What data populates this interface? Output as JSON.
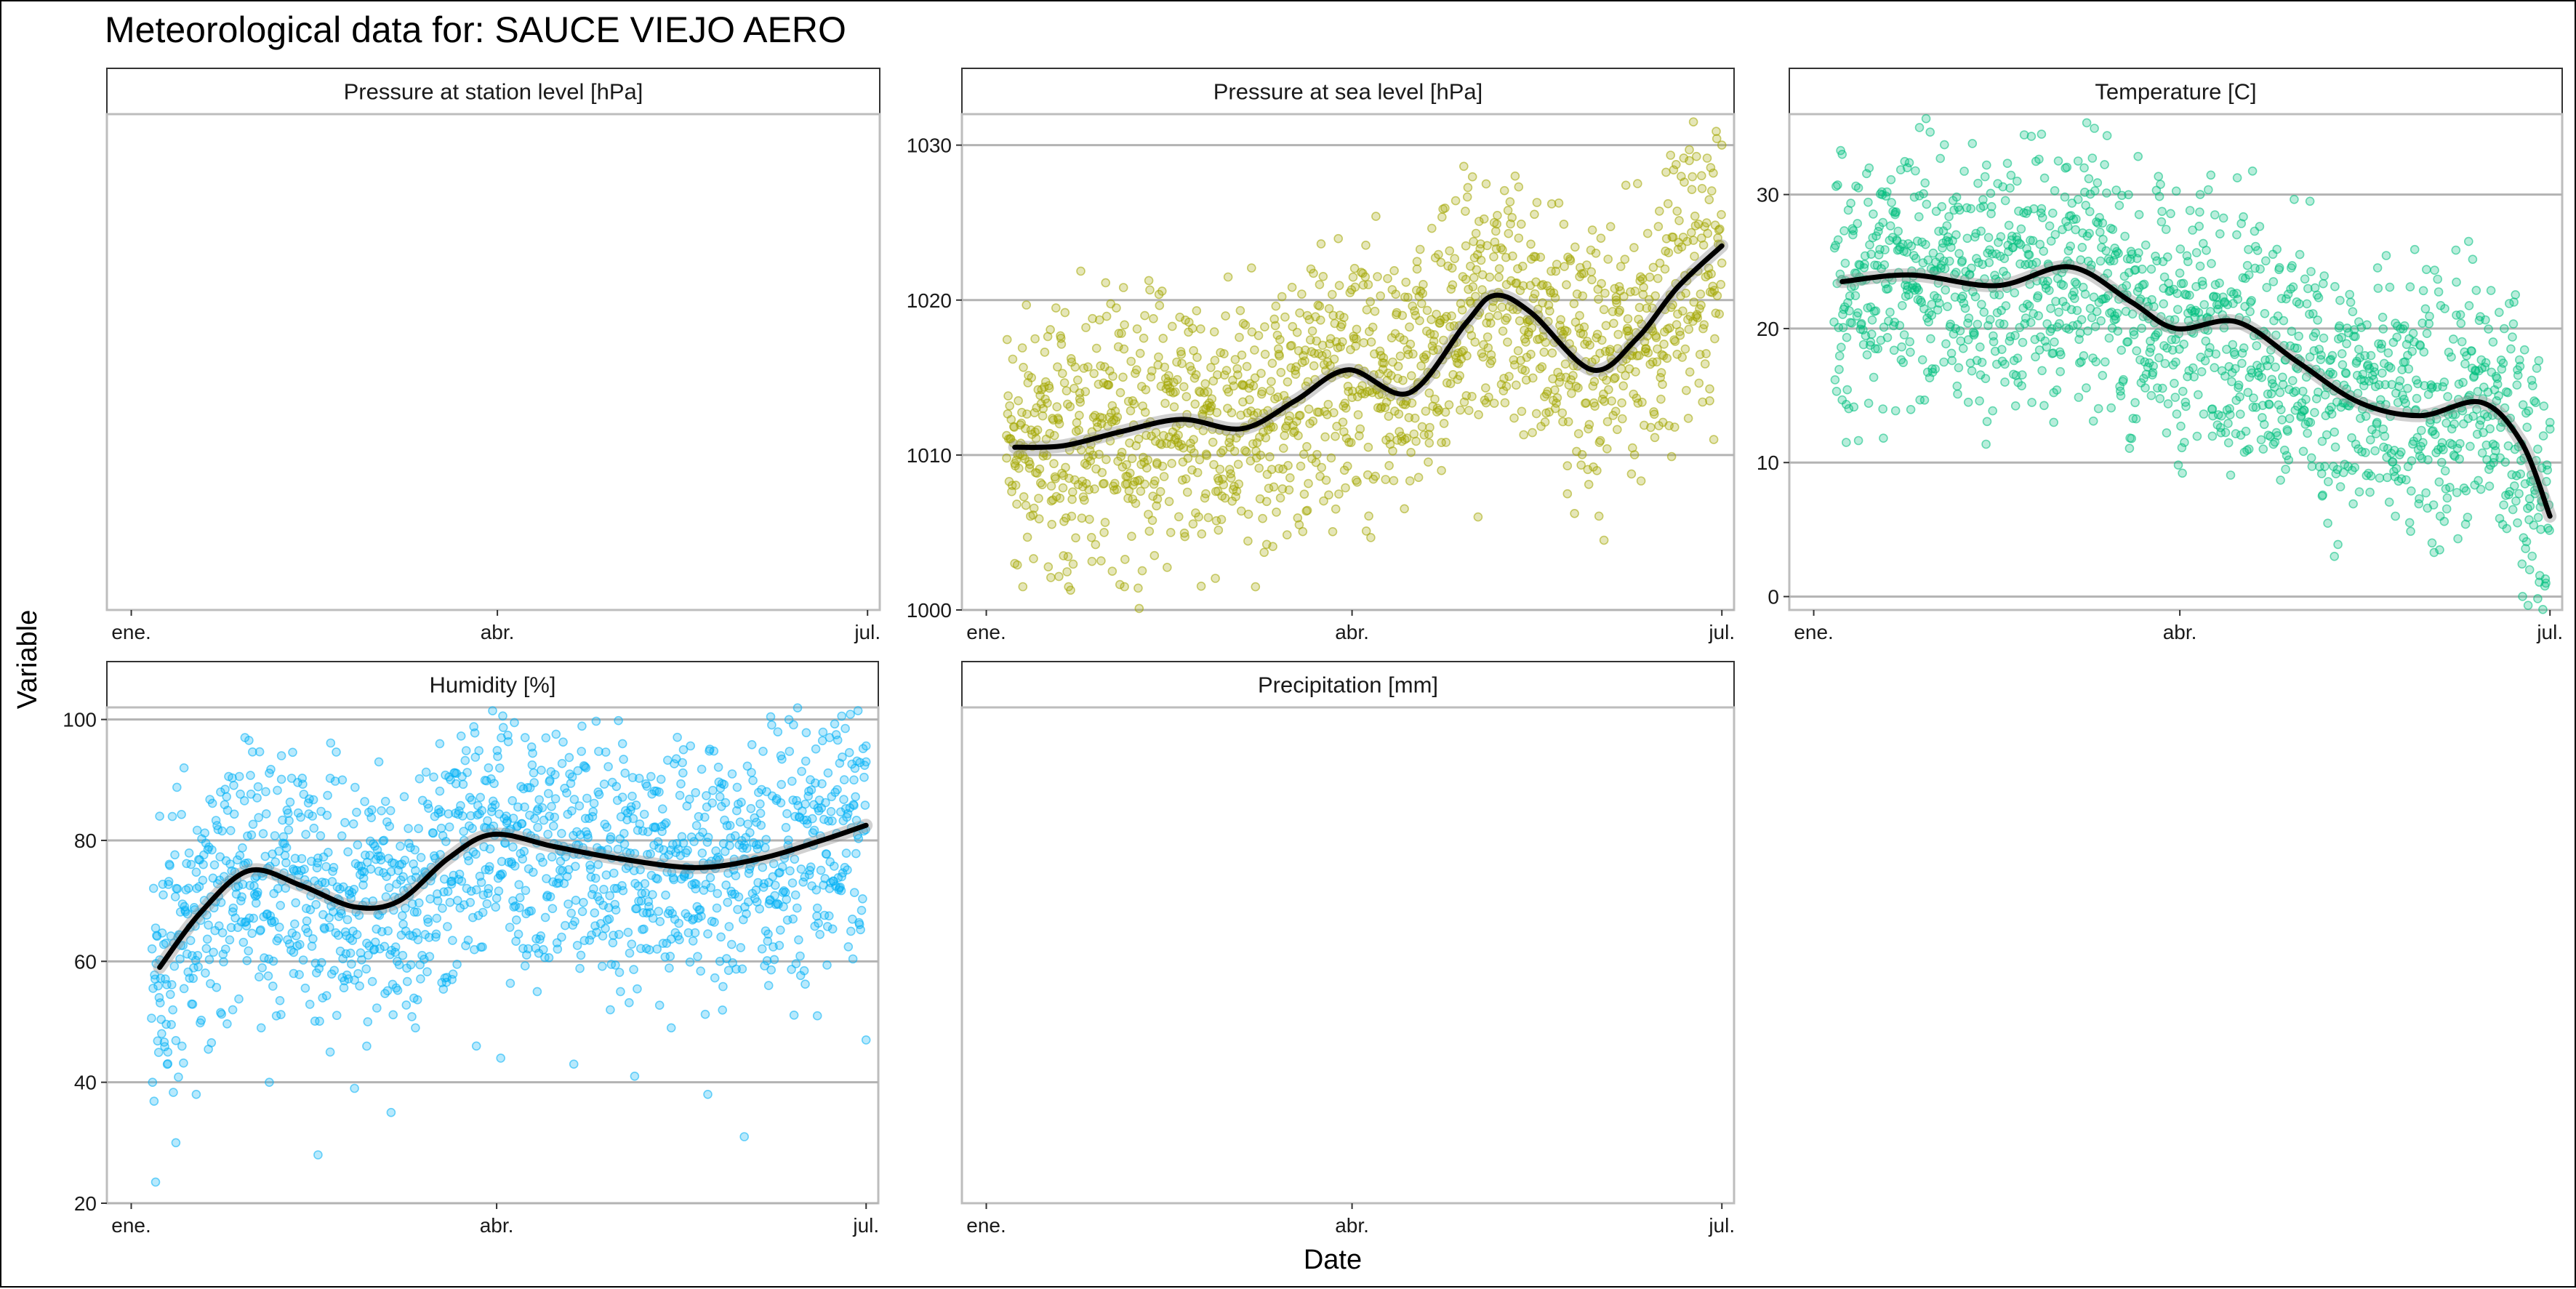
{
  "title": "Meteorological data for: SAUCE VIEJO AERO",
  "xlabel": "Date",
  "ylabel": "Variable",
  "x_tick_labels": [
    "ene.",
    "abr.",
    "jul."
  ],
  "chart_data": [
    {
      "type": "scatter",
      "facet": "Pressure at station level [hPa]",
      "color": "#c0c0c0",
      "x_ticks": [
        "ene.",
        "abr.",
        "jul."
      ],
      "xlim": [
        "2020-12-26",
        "2021-07-04"
      ],
      "points": [],
      "smooth": []
    },
    {
      "type": "scatter",
      "facet": "Pressure at sea level [hPa]",
      "color": "#a3a500",
      "x_ticks": [
        "ene.",
        "abr.",
        "jul."
      ],
      "y_ticks": [
        1000,
        1010,
        1020,
        1030
      ],
      "ylim": [
        1000,
        1032
      ],
      "xlim": [
        "2020-12-26",
        "2021-07-04"
      ],
      "smooth": [
        {
          "date": "2021-01-08",
          "value": 1010.5
        },
        {
          "date": "2021-01-20",
          "value": 1010.6
        },
        {
          "date": "2021-02-03",
          "value": 1011.5
        },
        {
          "date": "2021-02-18",
          "value": 1012.3
        },
        {
          "date": "2021-03-05",
          "value": 1011.7
        },
        {
          "date": "2021-03-18",
          "value": 1013.5
        },
        {
          "date": "2021-03-31",
          "value": 1015.5
        },
        {
          "date": "2021-04-15",
          "value": 1014.0
        },
        {
          "date": "2021-04-29",
          "value": 1018.5
        },
        {
          "date": "2021-05-06",
          "value": 1020.3
        },
        {
          "date": "2021-05-15",
          "value": 1019.2
        },
        {
          "date": "2021-05-30",
          "value": 1015.5
        },
        {
          "date": "2021-06-10",
          "value": 1017.5
        },
        {
          "date": "2021-06-20",
          "value": 1020.8
        },
        {
          "date": "2021-07-01",
          "value": 1023.5
        }
      ],
      "points": [
        {
          "date": "2021-01-06",
          "value": 1009.8
        },
        {
          "date": "2021-01-08",
          "value": 1003.0
        },
        {
          "date": "2021-01-10",
          "value": 1001.5
        },
        {
          "date": "2021-01-13",
          "value": 1017.5
        },
        {
          "date": "2021-01-15",
          "value": 1013.0
        },
        {
          "date": "2021-01-17",
          "value": 1008.0
        },
        {
          "date": "2021-01-20",
          "value": 1003.5
        },
        {
          "date": "2021-01-22",
          "value": 1016.0
        },
        {
          "date": "2021-01-24",
          "value": 1014.0
        },
        {
          "date": "2021-01-27",
          "value": 1011.5
        },
        {
          "date": "2021-01-30",
          "value": 1005.0
        },
        {
          "date": "2021-02-01",
          "value": 1002.5
        },
        {
          "date": "2021-02-04",
          "value": 1001.5
        },
        {
          "date": "2021-02-06",
          "value": 1013.5
        },
        {
          "date": "2021-02-09",
          "value": 1019.0
        },
        {
          "date": "2021-02-12",
          "value": 1009.5
        },
        {
          "date": "2021-02-15",
          "value": 1007.0
        },
        {
          "date": "2021-02-18",
          "value": 1016.5
        },
        {
          "date": "2021-02-21",
          "value": 1011.0
        },
        {
          "date": "2021-02-24",
          "value": 1013.0
        },
        {
          "date": "2021-02-27",
          "value": 1008.5
        },
        {
          "date": "2021-03-02",
          "value": 1010.5
        },
        {
          "date": "2021-03-05",
          "value": 1014.5
        },
        {
          "date": "2021-03-08",
          "value": 1012.0
        },
        {
          "date": "2021-03-11",
          "value": 1007.0
        },
        {
          "date": "2021-03-14",
          "value": 1016.5
        },
        {
          "date": "2021-03-16",
          "value": 1013.5
        },
        {
          "date": "2021-03-19",
          "value": 1005.5
        },
        {
          "date": "2021-03-21",
          "value": 1019.0
        },
        {
          "date": "2021-03-24",
          "value": 1021.0
        },
        {
          "date": "2021-03-27",
          "value": 1015.0
        },
        {
          "date": "2021-03-30",
          "value": 1011.5
        },
        {
          "date": "2021-04-02",
          "value": 1017.5
        },
        {
          "date": "2021-04-05",
          "value": 1010.5
        },
        {
          "date": "2021-04-08",
          "value": 1013.0
        },
        {
          "date": "2021-04-11",
          "value": 1016.0
        },
        {
          "date": "2021-04-14",
          "value": 1011.0
        },
        {
          "date": "2021-04-17",
          "value": 1022.0
        },
        {
          "date": "2021-04-20",
          "value": 1014.0
        },
        {
          "date": "2021-04-23",
          "value": 1009.0
        },
        {
          "date": "2021-04-26",
          "value": 1017.5
        },
        {
          "date": "2021-04-29",
          "value": 1023.5
        },
        {
          "date": "2021-05-02",
          "value": 1006.0
        },
        {
          "date": "2021-05-04",
          "value": 1027.5
        },
        {
          "date": "2021-05-06",
          "value": 1025.0
        },
        {
          "date": "2021-05-09",
          "value": 1021.0
        },
        {
          "date": "2021-05-12",
          "value": 1024.0
        },
        {
          "date": "2021-05-15",
          "value": 1016.5
        },
        {
          "date": "2021-05-18",
          "value": 1021.0
        },
        {
          "date": "2021-05-21",
          "value": 1013.0
        },
        {
          "date": "2021-05-24",
          "value": 1007.5
        },
        {
          "date": "2021-05-27",
          "value": 1019.0
        },
        {
          "date": "2021-05-30",
          "value": 1016.0
        },
        {
          "date": "2021-06-02",
          "value": 1004.5
        },
        {
          "date": "2021-06-05",
          "value": 1020.0
        },
        {
          "date": "2021-06-08",
          "value": 1017.0
        },
        {
          "date": "2021-06-11",
          "value": 1021.5
        },
        {
          "date": "2021-06-14",
          "value": 1018.0
        },
        {
          "date": "2021-06-17",
          "value": 1022.0
        },
        {
          "date": "2021-06-20",
          "value": 1016.5
        },
        {
          "date": "2021-06-23",
          "value": 1029.0
        },
        {
          "date": "2021-06-24",
          "value": 1031.5
        },
        {
          "date": "2021-06-26",
          "value": 1024.0
        },
        {
          "date": "2021-06-28",
          "value": 1013.5
        },
        {
          "date": "2021-06-29",
          "value": 1011.0
        },
        {
          "date": "2021-07-01",
          "value": 1030.0
        }
      ]
    },
    {
      "type": "scatter",
      "facet": "Temperature [C]",
      "color": "#00bf7d",
      "x_ticks": [
        "ene.",
        "abr.",
        "jul."
      ],
      "y_ticks": [
        0,
        10,
        20,
        30
      ],
      "ylim": [
        -1,
        36
      ],
      "xlim": [
        "2020-12-26",
        "2021-07-04"
      ],
      "smooth": [
        {
          "date": "2021-01-08",
          "value": 23.5
        },
        {
          "date": "2021-01-25",
          "value": 24.0
        },
        {
          "date": "2021-02-15",
          "value": 23.2
        },
        {
          "date": "2021-03-05",
          "value": 24.6
        },
        {
          "date": "2021-03-20",
          "value": 22.0
        },
        {
          "date": "2021-03-31",
          "value": 20.0
        },
        {
          "date": "2021-04-15",
          "value": 20.5
        },
        {
          "date": "2021-04-30",
          "value": 17.5
        },
        {
          "date": "2021-05-15",
          "value": 14.5
        },
        {
          "date": "2021-05-30",
          "value": 13.5
        },
        {
          "date": "2021-06-14",
          "value": 14.5
        },
        {
          "date": "2021-06-24",
          "value": 11.5
        },
        {
          "date": "2021-07-01",
          "value": 6.0
        }
      ],
      "points": [
        {
          "date": "2021-01-08",
          "value": 33.0
        },
        {
          "date": "2021-01-09",
          "value": 11.5
        },
        {
          "date": "2021-01-12",
          "value": 30.5
        },
        {
          "date": "2021-01-15",
          "value": 19.0
        },
        {
          "date": "2021-01-18",
          "value": 14.0
        },
        {
          "date": "2021-01-21",
          "value": 28.5
        },
        {
          "date": "2021-01-24",
          "value": 32.0
        },
        {
          "date": "2021-01-27",
          "value": 35.0
        },
        {
          "date": "2021-01-30",
          "value": 21.0
        },
        {
          "date": "2021-02-02",
          "value": 17.5
        },
        {
          "date": "2021-02-05",
          "value": 27.0
        },
        {
          "date": "2021-02-08",
          "value": 14.5
        },
        {
          "date": "2021-02-11",
          "value": 29.0
        },
        {
          "date": "2021-02-14",
          "value": 23.0
        },
        {
          "date": "2021-02-17",
          "value": 16.0
        },
        {
          "date": "2021-02-20",
          "value": 31.0
        },
        {
          "date": "2021-02-23",
          "value": 25.5
        },
        {
          "date": "2021-02-26",
          "value": 34.5
        },
        {
          "date": "2021-03-01",
          "value": 13.0
        },
        {
          "date": "2021-03-04",
          "value": 28.0
        },
        {
          "date": "2021-03-07",
          "value": 32.5
        },
        {
          "date": "2021-03-10",
          "value": 21.5
        },
        {
          "date": "2021-03-13",
          "value": 16.5
        },
        {
          "date": "2021-03-16",
          "value": 26.0
        },
        {
          "date": "2021-03-19",
          "value": 19.0
        },
        {
          "date": "2021-03-22",
          "value": 28.5
        },
        {
          "date": "2021-03-25",
          "value": 15.0
        },
        {
          "date": "2021-03-28",
          "value": 23.0
        },
        {
          "date": "2021-03-31",
          "value": 17.5
        },
        {
          "date": "2021-04-03",
          "value": 25.0
        },
        {
          "date": "2021-04-06",
          "value": 30.0
        },
        {
          "date": "2021-04-09",
          "value": 14.0
        },
        {
          "date": "2021-04-12",
          "value": 22.0
        },
        {
          "date": "2021-04-15",
          "value": 27.0
        },
        {
          "date": "2021-04-18",
          "value": 11.0
        },
        {
          "date": "2021-04-21",
          "value": 19.5
        },
        {
          "date": "2021-04-24",
          "value": 23.5
        },
        {
          "date": "2021-04-27",
          "value": 9.5
        },
        {
          "date": "2021-04-30",
          "value": 17.0
        },
        {
          "date": "2021-05-03",
          "value": 29.5
        },
        {
          "date": "2021-05-06",
          "value": 7.5
        },
        {
          "date": "2021-05-09",
          "value": 3.0
        },
        {
          "date": "2021-05-12",
          "value": 15.5
        },
        {
          "date": "2021-05-15",
          "value": 20.5
        },
        {
          "date": "2021-05-18",
          "value": 9.0
        },
        {
          "date": "2021-05-21",
          "value": 12.5
        },
        {
          "date": "2021-05-24",
          "value": 6.0
        },
        {
          "date": "2021-05-27",
          "value": 18.0
        },
        {
          "date": "2021-05-30",
          "value": 10.5
        },
        {
          "date": "2021-06-02",
          "value": 4.0
        },
        {
          "date": "2021-06-05",
          "value": 16.0
        },
        {
          "date": "2021-06-08",
          "value": 21.0
        },
        {
          "date": "2021-06-11",
          "value": 26.5
        },
        {
          "date": "2021-06-14",
          "value": 8.0
        },
        {
          "date": "2021-06-17",
          "value": 19.0
        },
        {
          "date": "2021-06-20",
          "value": 13.0
        },
        {
          "date": "2021-06-23",
          "value": 5.5
        },
        {
          "date": "2021-06-26",
          "value": 2.0
        },
        {
          "date": "2021-06-28",
          "value": 11.0
        },
        {
          "date": "2021-06-30",
          "value": 1.0
        },
        {
          "date": "2021-07-01",
          "value": 12.5
        }
      ]
    },
    {
      "type": "scatter",
      "facet": "Humidity [%]",
      "color": "#00b0f6",
      "x_ticks": [
        "ene.",
        "abr.",
        "jul."
      ],
      "y_ticks": [
        20,
        40,
        60,
        80,
        100
      ],
      "ylim": [
        20,
        102
      ],
      "xlim": [
        "2020-12-26",
        "2021-07-04"
      ],
      "smooth": [
        {
          "date": "2021-01-08",
          "value": 59.0
        },
        {
          "date": "2021-01-18",
          "value": 68.0
        },
        {
          "date": "2021-01-30",
          "value": 75.0
        },
        {
          "date": "2021-02-12",
          "value": 72.5
        },
        {
          "date": "2021-02-25",
          "value": 69.0
        },
        {
          "date": "2021-03-08",
          "value": 70.0
        },
        {
          "date": "2021-03-20",
          "value": 77.0
        },
        {
          "date": "2021-03-31",
          "value": 81.0
        },
        {
          "date": "2021-04-15",
          "value": 79.0
        },
        {
          "date": "2021-05-01",
          "value": 77.0
        },
        {
          "date": "2021-05-20",
          "value": 75.5
        },
        {
          "date": "2021-06-05",
          "value": 77.0
        },
        {
          "date": "2021-06-20",
          "value": 80.0
        },
        {
          "date": "2021-07-01",
          "value": 82.5
        }
      ],
      "points": [
        {
          "date": "2021-01-07",
          "value": 23.5
        },
        {
          "date": "2021-01-08",
          "value": 84.0
        },
        {
          "date": "2021-01-10",
          "value": 45.0
        },
        {
          "date": "2021-01-12",
          "value": 30.0
        },
        {
          "date": "2021-01-14",
          "value": 92.0
        },
        {
          "date": "2021-01-17",
          "value": 38.0
        },
        {
          "date": "2021-01-20",
          "value": 66.0
        },
        {
          "date": "2021-01-23",
          "value": 88.0
        },
        {
          "date": "2021-01-26",
          "value": 52.0
        },
        {
          "date": "2021-01-29",
          "value": 97.0
        },
        {
          "date": "2021-02-01",
          "value": 71.0
        },
        {
          "date": "2021-02-04",
          "value": 40.0
        },
        {
          "date": "2021-02-07",
          "value": 94.0
        },
        {
          "date": "2021-02-10",
          "value": 58.0
        },
        {
          "date": "2021-02-13",
          "value": 81.0
        },
        {
          "date": "2021-02-16",
          "value": 28.0
        },
        {
          "date": "2021-02-19",
          "value": 45.0
        },
        {
          "date": "2021-02-22",
          "value": 90.0
        },
        {
          "date": "2021-02-25",
          "value": 39.0
        },
        {
          "date": "2021-02-28",
          "value": 63.0
        },
        {
          "date": "2021-03-03",
          "value": 93.0
        },
        {
          "date": "2021-03-06",
          "value": 35.0
        },
        {
          "date": "2021-03-09",
          "value": 74.0
        },
        {
          "date": "2021-03-12",
          "value": 49.0
        },
        {
          "date": "2021-03-15",
          "value": 86.0
        },
        {
          "date": "2021-03-18",
          "value": 96.0
        },
        {
          "date": "2021-03-21",
          "value": 57.0
        },
        {
          "date": "2021-03-24",
          "value": 80.0
        },
        {
          "date": "2021-03-27",
          "value": 46.0
        },
        {
          "date": "2021-03-30",
          "value": 92.0
        },
        {
          "date": "2021-04-02",
          "value": 44.0
        },
        {
          "date": "2021-04-05",
          "value": 70.0
        },
        {
          "date": "2021-04-08",
          "value": 97.0
        },
        {
          "date": "2021-04-11",
          "value": 55.0
        },
        {
          "date": "2021-04-14",
          "value": 84.0
        },
        {
          "date": "2021-04-17",
          "value": 64.0
        },
        {
          "date": "2021-04-20",
          "value": 43.0
        },
        {
          "date": "2021-04-23",
          "value": 92.0
        },
        {
          "date": "2021-04-26",
          "value": 76.0
        },
        {
          "date": "2021-04-29",
          "value": 52.0
        },
        {
          "date": "2021-05-02",
          "value": 96.0
        },
        {
          "date": "2021-05-05",
          "value": 41.0
        },
        {
          "date": "2021-05-08",
          "value": 68.0
        },
        {
          "date": "2021-05-11",
          "value": 88.0
        },
        {
          "date": "2021-05-14",
          "value": 49.0
        },
        {
          "date": "2021-05-17",
          "value": 95.0
        },
        {
          "date": "2021-05-20",
          "value": 72.0
        },
        {
          "date": "2021-05-23",
          "value": 38.0
        },
        {
          "date": "2021-05-26",
          "value": 60.0
        },
        {
          "date": "2021-05-29",
          "value": 91.0
        },
        {
          "date": "2021-06-01",
          "value": 31.0
        },
        {
          "date": "2021-06-04",
          "value": 83.0
        },
        {
          "date": "2021-06-07",
          "value": 56.0
        },
        {
          "date": "2021-06-10",
          "value": 94.0
        },
        {
          "date": "2021-06-13",
          "value": 67.0
        },
        {
          "date": "2021-06-16",
          "value": 86.0
        },
        {
          "date": "2021-06-19",
          "value": 51.0
        },
        {
          "date": "2021-06-22",
          "value": 97.0
        },
        {
          "date": "2021-06-25",
          "value": 74.0
        },
        {
          "date": "2021-06-28",
          "value": 90.0
        },
        {
          "date": "2021-07-01",
          "value": 47.0
        },
        {
          "date": "2021-07-01",
          "value": 93.0
        }
      ]
    },
    {
      "type": "scatter",
      "facet": "Precipitation [mm]",
      "color": "#c0c0c0",
      "x_ticks": [
        "ene.",
        "abr.",
        "jul."
      ],
      "xlim": [
        "2020-12-26",
        "2021-07-04"
      ],
      "points": [],
      "smooth": []
    }
  ]
}
